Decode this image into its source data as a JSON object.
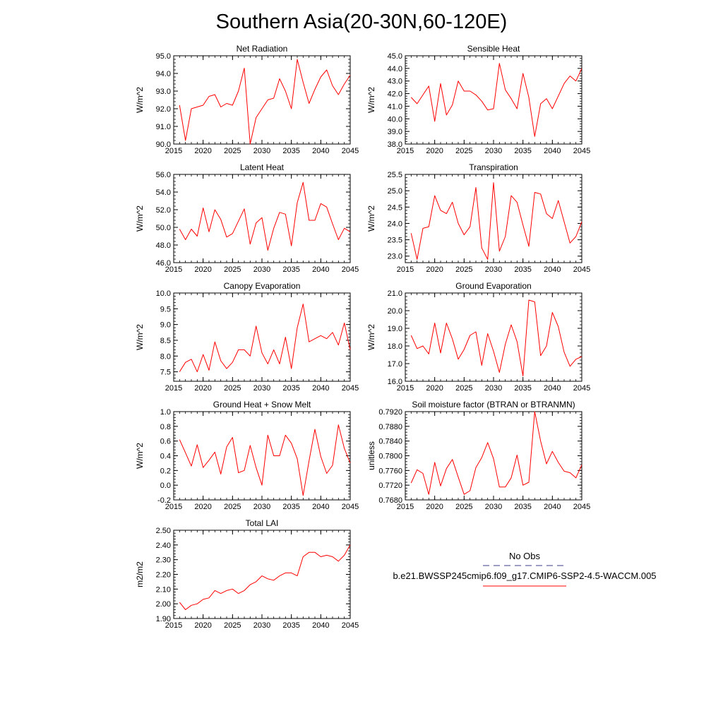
{
  "figure_title": "Southern Asia(20-30N,60-120E)",
  "legend": {
    "obs_label": "No Obs",
    "obs_color": "#3a3a8a",
    "model_label": "b.e21.BWSSP245cmip6.f09_g17.CMIP6-SSP2-4.5-WACCM.005",
    "model_color": "#ff0000"
  },
  "chart_data": [
    {
      "type": "line",
      "title": "Net Radiation",
      "ylabel": "W/m^2",
      "xlim": [
        2015,
        2045
      ],
      "ylim": [
        90.0,
        95.0
      ],
      "xticks": [
        "2015",
        "2020",
        "2025",
        "2030",
        "2035",
        "2040",
        "2045"
      ],
      "yticks": [
        "90.0",
        "91.0",
        "92.0",
        "93.0",
        "94.0",
        "95.0"
      ],
      "grid": false,
      "series": [
        {
          "color": "#ff0000",
          "x": [
            2016,
            2017,
            2018,
            2019,
            2020,
            2021,
            2022,
            2023,
            2024,
            2025,
            2026,
            2027,
            2028,
            2029,
            2030,
            2031,
            2032,
            2033,
            2034,
            2035,
            2036,
            2037,
            2038,
            2039,
            2040,
            2041,
            2042,
            2043,
            2044,
            2045
          ],
          "values": [
            92.2,
            90.2,
            92.0,
            92.1,
            92.2,
            92.7,
            92.8,
            92.1,
            92.3,
            92.2,
            93.0,
            94.3,
            90.0,
            91.5,
            92.0,
            92.5,
            92.6,
            93.7,
            93.0,
            92.0,
            94.8,
            93.5,
            92.3,
            93.1,
            93.8,
            94.2,
            93.3,
            92.8,
            93.4,
            93.9
          ]
        }
      ]
    },
    {
      "type": "line",
      "title": "Sensible Heat",
      "ylabel": "W/m^2",
      "xlim": [
        2015,
        2045
      ],
      "ylim": [
        38.0,
        45.0
      ],
      "xticks": [
        "2015",
        "2020",
        "2025",
        "2030",
        "2035",
        "2040",
        "2045"
      ],
      "yticks": [
        "38.0",
        "39.0",
        "40.0",
        "41.0",
        "42.0",
        "43.0",
        "44.0",
        "45.0"
      ],
      "grid": false,
      "series": [
        {
          "color": "#ff0000",
          "x": [
            2016,
            2017,
            2018,
            2019,
            2020,
            2021,
            2022,
            2023,
            2024,
            2025,
            2026,
            2027,
            2028,
            2029,
            2030,
            2031,
            2032,
            2033,
            2034,
            2035,
            2036,
            2037,
            2038,
            2039,
            2040,
            2041,
            2042,
            2043,
            2044,
            2045
          ],
          "values": [
            41.7,
            41.2,
            41.9,
            42.6,
            39.8,
            42.8,
            40.3,
            41.1,
            43.0,
            42.2,
            42.2,
            41.9,
            41.4,
            40.7,
            40.8,
            44.4,
            42.3,
            41.6,
            40.8,
            43.6,
            41.7,
            38.6,
            41.2,
            41.6,
            40.8,
            41.8,
            42.8,
            43.4,
            43.0,
            44.0
          ]
        }
      ]
    },
    {
      "type": "line",
      "title": "Latent Heat",
      "ylabel": "W/m^2",
      "xlim": [
        2015,
        2045
      ],
      "ylim": [
        46.0,
        56.0
      ],
      "xticks": [
        "2015",
        "2020",
        "2025",
        "2030",
        "2035",
        "2040",
        "2045"
      ],
      "yticks": [
        "46.0",
        "48.0",
        "50.0",
        "52.0",
        "54.0",
        "56.0"
      ],
      "grid": false,
      "series": [
        {
          "color": "#ff0000",
          "x": [
            2016,
            2017,
            2018,
            2019,
            2020,
            2021,
            2022,
            2023,
            2024,
            2025,
            2026,
            2027,
            2028,
            2029,
            2030,
            2031,
            2032,
            2033,
            2034,
            2035,
            2036,
            2037,
            2038,
            2039,
            2040,
            2041,
            2042,
            2043,
            2044,
            2045
          ],
          "values": [
            49.8,
            48.6,
            49.8,
            49.0,
            52.2,
            49.5,
            52.0,
            50.9,
            48.9,
            49.3,
            50.7,
            52.1,
            48.1,
            50.5,
            51.1,
            47.4,
            49.9,
            51.7,
            51.5,
            47.9,
            52.8,
            55.1,
            50.8,
            50.8,
            52.7,
            52.3,
            50.4,
            48.6,
            49.9,
            49.5
          ]
        }
      ]
    },
    {
      "type": "line",
      "title": "Transpiration",
      "ylabel": "W/m^2",
      "xlim": [
        2015,
        2045
      ],
      "ylim": [
        22.8,
        25.5
      ],
      "xticks": [
        "2015",
        "2020",
        "2025",
        "2030",
        "2035",
        "2040",
        "2045"
      ],
      "yticks": [
        "23.0",
        "23.5",
        "24.0",
        "24.5",
        "25.0",
        "25.5"
      ],
      "grid": false,
      "series": [
        {
          "color": "#ff0000",
          "x": [
            2016,
            2017,
            2018,
            2019,
            2020,
            2021,
            2022,
            2023,
            2024,
            2025,
            2026,
            2027,
            2028,
            2029,
            2030,
            2031,
            2032,
            2033,
            2034,
            2035,
            2036,
            2037,
            2038,
            2039,
            2040,
            2041,
            2042,
            2043,
            2044,
            2045
          ],
          "values": [
            23.7,
            22.9,
            23.85,
            23.9,
            24.85,
            24.4,
            24.3,
            24.65,
            24.0,
            23.65,
            23.9,
            25.1,
            23.25,
            22.9,
            25.25,
            23.15,
            23.6,
            24.85,
            24.65,
            23.95,
            23.3,
            24.95,
            24.9,
            24.3,
            24.15,
            24.7,
            24.05,
            23.4,
            23.6,
            24.05
          ]
        }
      ]
    },
    {
      "type": "line",
      "title": "Canopy Evaporation",
      "ylabel": "W/m^2",
      "xlim": [
        2015,
        2045
      ],
      "ylim": [
        7.2,
        10.0
      ],
      "xticks": [
        "2015",
        "2020",
        "2025",
        "2030",
        "2035",
        "2040",
        "2045"
      ],
      "yticks": [
        "7.5",
        "8.0",
        "8.5",
        "9.0",
        "9.5",
        "10.0"
      ],
      "grid": false,
      "series": [
        {
          "color": "#ff0000",
          "x": [
            2016,
            2017,
            2018,
            2019,
            2020,
            2021,
            2022,
            2023,
            2024,
            2025,
            2026,
            2027,
            2028,
            2029,
            2030,
            2031,
            2032,
            2033,
            2034,
            2035,
            2036,
            2037,
            2038,
            2039,
            2040,
            2041,
            2042,
            2043,
            2044,
            2045
          ],
          "values": [
            7.5,
            7.8,
            7.9,
            7.5,
            8.05,
            7.55,
            8.45,
            7.85,
            7.6,
            7.8,
            8.2,
            8.2,
            8.0,
            8.95,
            8.1,
            7.75,
            8.2,
            7.75,
            8.6,
            7.6,
            8.9,
            9.65,
            8.45,
            8.55,
            8.65,
            8.55,
            8.75,
            8.35,
            9.05,
            8.2
          ]
        }
      ]
    },
    {
      "type": "line",
      "title": "Ground Evaporation",
      "ylabel": "W/m^2",
      "xlim": [
        2015,
        2045
      ],
      "ylim": [
        16.0,
        21.0
      ],
      "xticks": [
        "2015",
        "2020",
        "2025",
        "2030",
        "2035",
        "2040",
        "2045"
      ],
      "yticks": [
        "16.0",
        "17.0",
        "18.0",
        "19.0",
        "20.0",
        "21.0"
      ],
      "grid": false,
      "series": [
        {
          "color": "#ff0000",
          "x": [
            2016,
            2017,
            2018,
            2019,
            2020,
            2021,
            2022,
            2023,
            2024,
            2025,
            2026,
            2027,
            2028,
            2029,
            2030,
            2031,
            2032,
            2033,
            2034,
            2035,
            2036,
            2037,
            2038,
            2039,
            2040,
            2041,
            2042,
            2043,
            2044,
            2045
          ],
          "values": [
            18.6,
            17.85,
            18.0,
            17.55,
            19.3,
            17.6,
            19.3,
            18.4,
            17.25,
            17.8,
            18.6,
            18.8,
            16.9,
            18.7,
            17.7,
            16.5,
            18.1,
            19.2,
            18.25,
            16.3,
            20.6,
            20.5,
            17.45,
            18.0,
            19.9,
            19.1,
            17.65,
            16.85,
            17.25,
            17.4
          ]
        }
      ]
    },
    {
      "type": "line",
      "title": "Ground Heat + Snow Melt",
      "ylabel": "W/m^2",
      "xlim": [
        2015,
        2045
      ],
      "ylim": [
        -0.2,
        1.0
      ],
      "xticks": [
        "2015",
        "2020",
        "2025",
        "2030",
        "2035",
        "2040",
        "2045"
      ],
      "yticks": [
        "-0.2",
        "0.0",
        "0.2",
        "0.4",
        "0.6",
        "0.8",
        "1.0"
      ],
      "grid": false,
      "series": [
        {
          "color": "#ff0000",
          "x": [
            2016,
            2017,
            2018,
            2019,
            2020,
            2021,
            2022,
            2023,
            2024,
            2025,
            2026,
            2027,
            2028,
            2029,
            2030,
            2031,
            2032,
            2033,
            2034,
            2035,
            2036,
            2037,
            2038,
            2039,
            2040,
            2041,
            2042,
            2043,
            2044,
            2045
          ],
          "values": [
            0.62,
            0.44,
            0.26,
            0.55,
            0.24,
            0.34,
            0.45,
            0.15,
            0.52,
            0.65,
            0.17,
            0.2,
            0.54,
            0.24,
            0.0,
            0.68,
            0.4,
            0.4,
            0.68,
            0.57,
            0.36,
            -0.14,
            0.33,
            0.76,
            0.39,
            0.16,
            0.27,
            0.82,
            0.5,
            0.3
          ]
        }
      ]
    },
    {
      "type": "line",
      "title": "Soil moisture factor (BTRAN or BTRANMN)",
      "ylabel": "unitless",
      "xlim": [
        2015,
        2045
      ],
      "ylim": [
        0.768,
        0.792
      ],
      "xticks": [
        "2015",
        "2020",
        "2025",
        "2030",
        "2035",
        "2040",
        "2045"
      ],
      "yticks": [
        "0.7680",
        "0.7720",
        "0.7760",
        "0.7800",
        "0.7840",
        "0.7880",
        "0.7920"
      ],
      "grid": false,
      "series": [
        {
          "color": "#ff0000",
          "x": [
            2016,
            2017,
            2018,
            2019,
            2020,
            2021,
            2022,
            2023,
            2024,
            2025,
            2026,
            2027,
            2028,
            2029,
            2030,
            2031,
            2032,
            2033,
            2034,
            2035,
            2036,
            2037,
            2038,
            2039,
            2040,
            2041,
            2042,
            2043,
            2044,
            2045
          ],
          "values": [
            0.7726,
            0.7762,
            0.7752,
            0.7695,
            0.7782,
            0.7718,
            0.7765,
            0.779,
            0.7742,
            0.7695,
            0.7705,
            0.7768,
            0.7795,
            0.7836,
            0.7792,
            0.7715,
            0.7715,
            0.774,
            0.7802,
            0.772,
            0.7728,
            0.792,
            0.784,
            0.7778,
            0.7812,
            0.7782,
            0.7758,
            0.7754,
            0.774,
            0.7775
          ]
        }
      ]
    },
    {
      "type": "line",
      "title": "Total LAI",
      "ylabel": "m2/m2",
      "xlim": [
        2015,
        2045
      ],
      "ylim": [
        1.9,
        2.5
      ],
      "xticks": [
        "2015",
        "2020",
        "2025",
        "2030",
        "2035",
        "2040",
        "2045"
      ],
      "yticks": [
        "1.90",
        "2.00",
        "2.10",
        "2.20",
        "2.30",
        "2.40",
        "2.50"
      ],
      "grid": false,
      "series": [
        {
          "color": "#ff0000",
          "x": [
            2016,
            2017,
            2018,
            2019,
            2020,
            2021,
            2022,
            2023,
            2024,
            2025,
            2026,
            2027,
            2028,
            2029,
            2030,
            2031,
            2032,
            2033,
            2034,
            2035,
            2036,
            2037,
            2038,
            2039,
            2040,
            2041,
            2042,
            2043,
            2044,
            2045
          ],
          "values": [
            2.01,
            1.96,
            1.99,
            2.0,
            2.03,
            2.04,
            2.09,
            2.07,
            2.09,
            2.1,
            2.07,
            2.09,
            2.13,
            2.15,
            2.19,
            2.17,
            2.16,
            2.19,
            2.21,
            2.21,
            2.19,
            2.32,
            2.35,
            2.35,
            2.32,
            2.33,
            2.32,
            2.29,
            2.33,
            2.4
          ]
        }
      ]
    }
  ]
}
